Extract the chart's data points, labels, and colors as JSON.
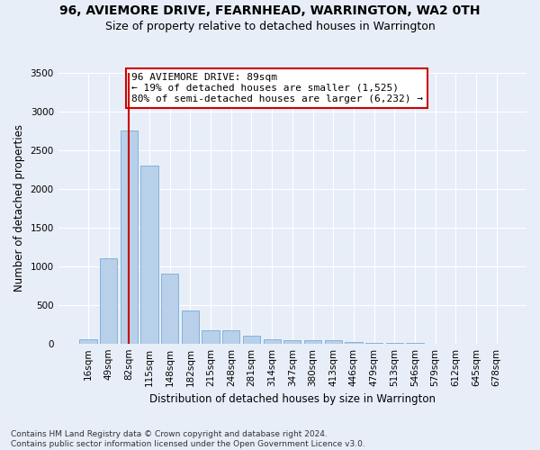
{
  "title": "96, AVIEMORE DRIVE, FEARNHEAD, WARRINGTON, WA2 0TH",
  "subtitle": "Size of property relative to detached houses in Warrington",
  "xlabel": "Distribution of detached houses by size in Warrington",
  "ylabel": "Number of detached properties",
  "bar_labels": [
    "16sqm",
    "49sqm",
    "82sqm",
    "115sqm",
    "148sqm",
    "182sqm",
    "215sqm",
    "248sqm",
    "281sqm",
    "314sqm",
    "347sqm",
    "380sqm",
    "413sqm",
    "446sqm",
    "479sqm",
    "513sqm",
    "546sqm",
    "579sqm",
    "612sqm",
    "645sqm",
    "678sqm"
  ],
  "bar_values": [
    50,
    1100,
    2750,
    2300,
    900,
    430,
    175,
    170,
    100,
    60,
    45,
    38,
    45,
    25,
    10,
    5,
    3,
    2,
    1,
    1,
    1
  ],
  "bar_color": "#b8d0ea",
  "bar_edge_color": "#7aabd4",
  "background_color": "#e8eef8",
  "grid_color": "#ffffff",
  "vline_x_index": 2,
  "vline_color": "#cc0000",
  "annotation_text": "96 AVIEMORE DRIVE: 89sqm\n← 19% of detached houses are smaller (1,525)\n80% of semi-detached houses are larger (6,232) →",
  "annotation_box_color": "#ffffff",
  "annotation_box_edge": "#cc0000",
  "ylim": [
    0,
    3500
  ],
  "yticks": [
    0,
    500,
    1000,
    1500,
    2000,
    2500,
    3000,
    3500
  ],
  "footer": "Contains HM Land Registry data © Crown copyright and database right 2024.\nContains public sector information licensed under the Open Government Licence v3.0.",
  "title_fontsize": 10,
  "subtitle_fontsize": 9,
  "xlabel_fontsize": 8.5,
  "ylabel_fontsize": 8.5,
  "tick_fontsize": 7.5,
  "annotation_fontsize": 8,
  "footer_fontsize": 6.5
}
